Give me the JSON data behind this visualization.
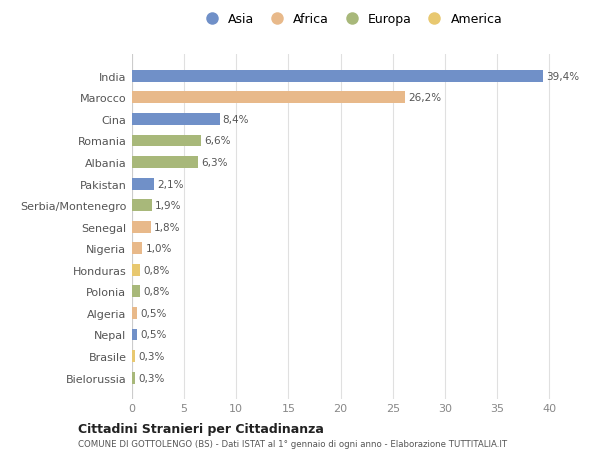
{
  "countries": [
    "India",
    "Marocco",
    "Cina",
    "Romania",
    "Albania",
    "Pakistan",
    "Serbia/Montenegro",
    "Senegal",
    "Nigeria",
    "Honduras",
    "Polonia",
    "Algeria",
    "Nepal",
    "Brasile",
    "Bielorussia"
  ],
  "values": [
    39.4,
    26.2,
    8.4,
    6.6,
    6.3,
    2.1,
    1.9,
    1.8,
    1.0,
    0.8,
    0.8,
    0.5,
    0.5,
    0.3,
    0.3
  ],
  "labels": [
    "39,4%",
    "26,2%",
    "8,4%",
    "6,6%",
    "6,3%",
    "2,1%",
    "1,9%",
    "1,8%",
    "1,0%",
    "0,8%",
    "0,8%",
    "0,5%",
    "0,5%",
    "0,3%",
    "0,3%"
  ],
  "continents": [
    "Asia",
    "Africa",
    "Asia",
    "Europa",
    "Europa",
    "Asia",
    "Europa",
    "Africa",
    "Africa",
    "America",
    "Europa",
    "Africa",
    "Asia",
    "America",
    "Europa"
  ],
  "continent_colors": {
    "Asia": "#7090c8",
    "Africa": "#e8b98a",
    "Europa": "#a8b87a",
    "America": "#e8c870"
  },
  "legend_order": [
    "Asia",
    "Africa",
    "Europa",
    "America"
  ],
  "title_bold": "Cittadini Stranieri per Cittadinanza",
  "subtitle": "COMUNE DI GOTTOLENGO (BS) - Dati ISTAT al 1° gennaio di ogni anno - Elaborazione TUTTITALIA.IT",
  "xlim": [
    0,
    42
  ],
  "xticks": [
    0,
    5,
    10,
    15,
    20,
    25,
    30,
    35,
    40
  ],
  "bg_color": "#ffffff",
  "plot_bg_color": "#ffffff",
  "grid_color": "#e0e0e0"
}
